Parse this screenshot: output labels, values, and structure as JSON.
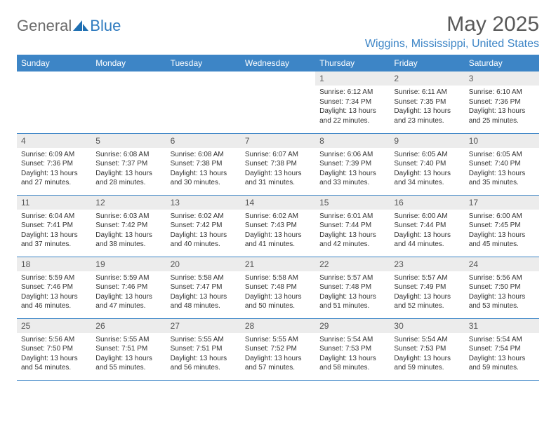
{
  "brand": {
    "part1": "General",
    "part2": "Blue"
  },
  "title": "May 2025",
  "location": "Wiggins, Mississippi, United States",
  "colors": {
    "header_bg": "#3d85c6",
    "header_text": "#ffffff",
    "daynum_bg": "#ececec",
    "border": "#3d85c6",
    "title_color": "#595959",
    "location_color": "#3d85c6"
  },
  "dayHeaders": [
    "Sunday",
    "Monday",
    "Tuesday",
    "Wednesday",
    "Thursday",
    "Friday",
    "Saturday"
  ],
  "weeks": [
    [
      {
        "day": "",
        "sunrise": "",
        "sunset": "",
        "daylight": ""
      },
      {
        "day": "",
        "sunrise": "",
        "sunset": "",
        "daylight": ""
      },
      {
        "day": "",
        "sunrise": "",
        "sunset": "",
        "daylight": ""
      },
      {
        "day": "",
        "sunrise": "",
        "sunset": "",
        "daylight": ""
      },
      {
        "day": "1",
        "sunrise": "Sunrise: 6:12 AM",
        "sunset": "Sunset: 7:34 PM",
        "daylight": "Daylight: 13 hours and 22 minutes."
      },
      {
        "day": "2",
        "sunrise": "Sunrise: 6:11 AM",
        "sunset": "Sunset: 7:35 PM",
        "daylight": "Daylight: 13 hours and 23 minutes."
      },
      {
        "day": "3",
        "sunrise": "Sunrise: 6:10 AM",
        "sunset": "Sunset: 7:36 PM",
        "daylight": "Daylight: 13 hours and 25 minutes."
      }
    ],
    [
      {
        "day": "4",
        "sunrise": "Sunrise: 6:09 AM",
        "sunset": "Sunset: 7:36 PM",
        "daylight": "Daylight: 13 hours and 27 minutes."
      },
      {
        "day": "5",
        "sunrise": "Sunrise: 6:08 AM",
        "sunset": "Sunset: 7:37 PM",
        "daylight": "Daylight: 13 hours and 28 minutes."
      },
      {
        "day": "6",
        "sunrise": "Sunrise: 6:08 AM",
        "sunset": "Sunset: 7:38 PM",
        "daylight": "Daylight: 13 hours and 30 minutes."
      },
      {
        "day": "7",
        "sunrise": "Sunrise: 6:07 AM",
        "sunset": "Sunset: 7:38 PM",
        "daylight": "Daylight: 13 hours and 31 minutes."
      },
      {
        "day": "8",
        "sunrise": "Sunrise: 6:06 AM",
        "sunset": "Sunset: 7:39 PM",
        "daylight": "Daylight: 13 hours and 33 minutes."
      },
      {
        "day": "9",
        "sunrise": "Sunrise: 6:05 AM",
        "sunset": "Sunset: 7:40 PM",
        "daylight": "Daylight: 13 hours and 34 minutes."
      },
      {
        "day": "10",
        "sunrise": "Sunrise: 6:05 AM",
        "sunset": "Sunset: 7:40 PM",
        "daylight": "Daylight: 13 hours and 35 minutes."
      }
    ],
    [
      {
        "day": "11",
        "sunrise": "Sunrise: 6:04 AM",
        "sunset": "Sunset: 7:41 PM",
        "daylight": "Daylight: 13 hours and 37 minutes."
      },
      {
        "day": "12",
        "sunrise": "Sunrise: 6:03 AM",
        "sunset": "Sunset: 7:42 PM",
        "daylight": "Daylight: 13 hours and 38 minutes."
      },
      {
        "day": "13",
        "sunrise": "Sunrise: 6:02 AM",
        "sunset": "Sunset: 7:42 PM",
        "daylight": "Daylight: 13 hours and 40 minutes."
      },
      {
        "day": "14",
        "sunrise": "Sunrise: 6:02 AM",
        "sunset": "Sunset: 7:43 PM",
        "daylight": "Daylight: 13 hours and 41 minutes."
      },
      {
        "day": "15",
        "sunrise": "Sunrise: 6:01 AM",
        "sunset": "Sunset: 7:44 PM",
        "daylight": "Daylight: 13 hours and 42 minutes."
      },
      {
        "day": "16",
        "sunrise": "Sunrise: 6:00 AM",
        "sunset": "Sunset: 7:44 PM",
        "daylight": "Daylight: 13 hours and 44 minutes."
      },
      {
        "day": "17",
        "sunrise": "Sunrise: 6:00 AM",
        "sunset": "Sunset: 7:45 PM",
        "daylight": "Daylight: 13 hours and 45 minutes."
      }
    ],
    [
      {
        "day": "18",
        "sunrise": "Sunrise: 5:59 AM",
        "sunset": "Sunset: 7:46 PM",
        "daylight": "Daylight: 13 hours and 46 minutes."
      },
      {
        "day": "19",
        "sunrise": "Sunrise: 5:59 AM",
        "sunset": "Sunset: 7:46 PM",
        "daylight": "Daylight: 13 hours and 47 minutes."
      },
      {
        "day": "20",
        "sunrise": "Sunrise: 5:58 AM",
        "sunset": "Sunset: 7:47 PM",
        "daylight": "Daylight: 13 hours and 48 minutes."
      },
      {
        "day": "21",
        "sunrise": "Sunrise: 5:58 AM",
        "sunset": "Sunset: 7:48 PM",
        "daylight": "Daylight: 13 hours and 50 minutes."
      },
      {
        "day": "22",
        "sunrise": "Sunrise: 5:57 AM",
        "sunset": "Sunset: 7:48 PM",
        "daylight": "Daylight: 13 hours and 51 minutes."
      },
      {
        "day": "23",
        "sunrise": "Sunrise: 5:57 AM",
        "sunset": "Sunset: 7:49 PM",
        "daylight": "Daylight: 13 hours and 52 minutes."
      },
      {
        "day": "24",
        "sunrise": "Sunrise: 5:56 AM",
        "sunset": "Sunset: 7:50 PM",
        "daylight": "Daylight: 13 hours and 53 minutes."
      }
    ],
    [
      {
        "day": "25",
        "sunrise": "Sunrise: 5:56 AM",
        "sunset": "Sunset: 7:50 PM",
        "daylight": "Daylight: 13 hours and 54 minutes."
      },
      {
        "day": "26",
        "sunrise": "Sunrise: 5:55 AM",
        "sunset": "Sunset: 7:51 PM",
        "daylight": "Daylight: 13 hours and 55 minutes."
      },
      {
        "day": "27",
        "sunrise": "Sunrise: 5:55 AM",
        "sunset": "Sunset: 7:51 PM",
        "daylight": "Daylight: 13 hours and 56 minutes."
      },
      {
        "day": "28",
        "sunrise": "Sunrise: 5:55 AM",
        "sunset": "Sunset: 7:52 PM",
        "daylight": "Daylight: 13 hours and 57 minutes."
      },
      {
        "day": "29",
        "sunrise": "Sunrise: 5:54 AM",
        "sunset": "Sunset: 7:53 PM",
        "daylight": "Daylight: 13 hours and 58 minutes."
      },
      {
        "day": "30",
        "sunrise": "Sunrise: 5:54 AM",
        "sunset": "Sunset: 7:53 PM",
        "daylight": "Daylight: 13 hours and 59 minutes."
      },
      {
        "day": "31",
        "sunrise": "Sunrise: 5:54 AM",
        "sunset": "Sunset: 7:54 PM",
        "daylight": "Daylight: 13 hours and 59 minutes."
      }
    ]
  ]
}
